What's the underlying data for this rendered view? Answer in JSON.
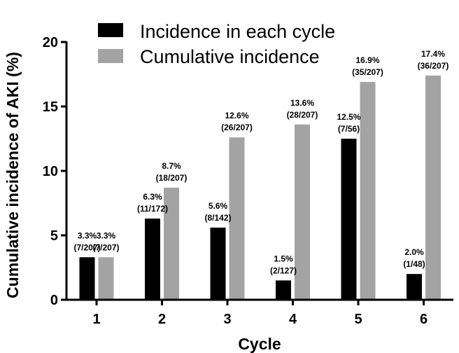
{
  "chart_data": {
    "type": "bar",
    "xlabel": "Cycle",
    "ylabel": "Cumulative incidence of AKI (%)",
    "categories": [
      "1",
      "2",
      "3",
      "4",
      "5",
      "6"
    ],
    "ylim": [
      0,
      20
    ],
    "yticks": [
      "0",
      "5",
      "10",
      "15",
      "20"
    ],
    "grid": false,
    "legend_position": "top-left",
    "series": [
      {
        "name": "Incidence in each cycle",
        "color": "#000000",
        "values": [
          3.3,
          6.3,
          5.6,
          1.5,
          12.5,
          2.0
        ],
        "labels": [
          [
            "3.3%",
            "(7/207)"
          ],
          [
            "6.3%",
            "(11/172)"
          ],
          [
            "5.6%",
            "(8/142)"
          ],
          [
            "1.5%",
            "(2/127)"
          ],
          [
            "12.5%",
            "(7/56)"
          ],
          [
            "2.0%",
            "(1/48)"
          ]
        ]
      },
      {
        "name": "Cumulative incidence",
        "color": "#a3a3a3",
        "values": [
          3.3,
          8.7,
          12.6,
          13.6,
          16.9,
          17.4
        ],
        "labels": [
          [
            "3.3%",
            "(7/207)"
          ],
          [
            "8.7%",
            "(18/207)"
          ],
          [
            "12.6%",
            "(26/207)"
          ],
          [
            "13.6%",
            "(28/207)"
          ],
          [
            "16.9%",
            "(35/207)"
          ],
          [
            "17.4%",
            "(36/207)"
          ]
        ]
      }
    ]
  }
}
